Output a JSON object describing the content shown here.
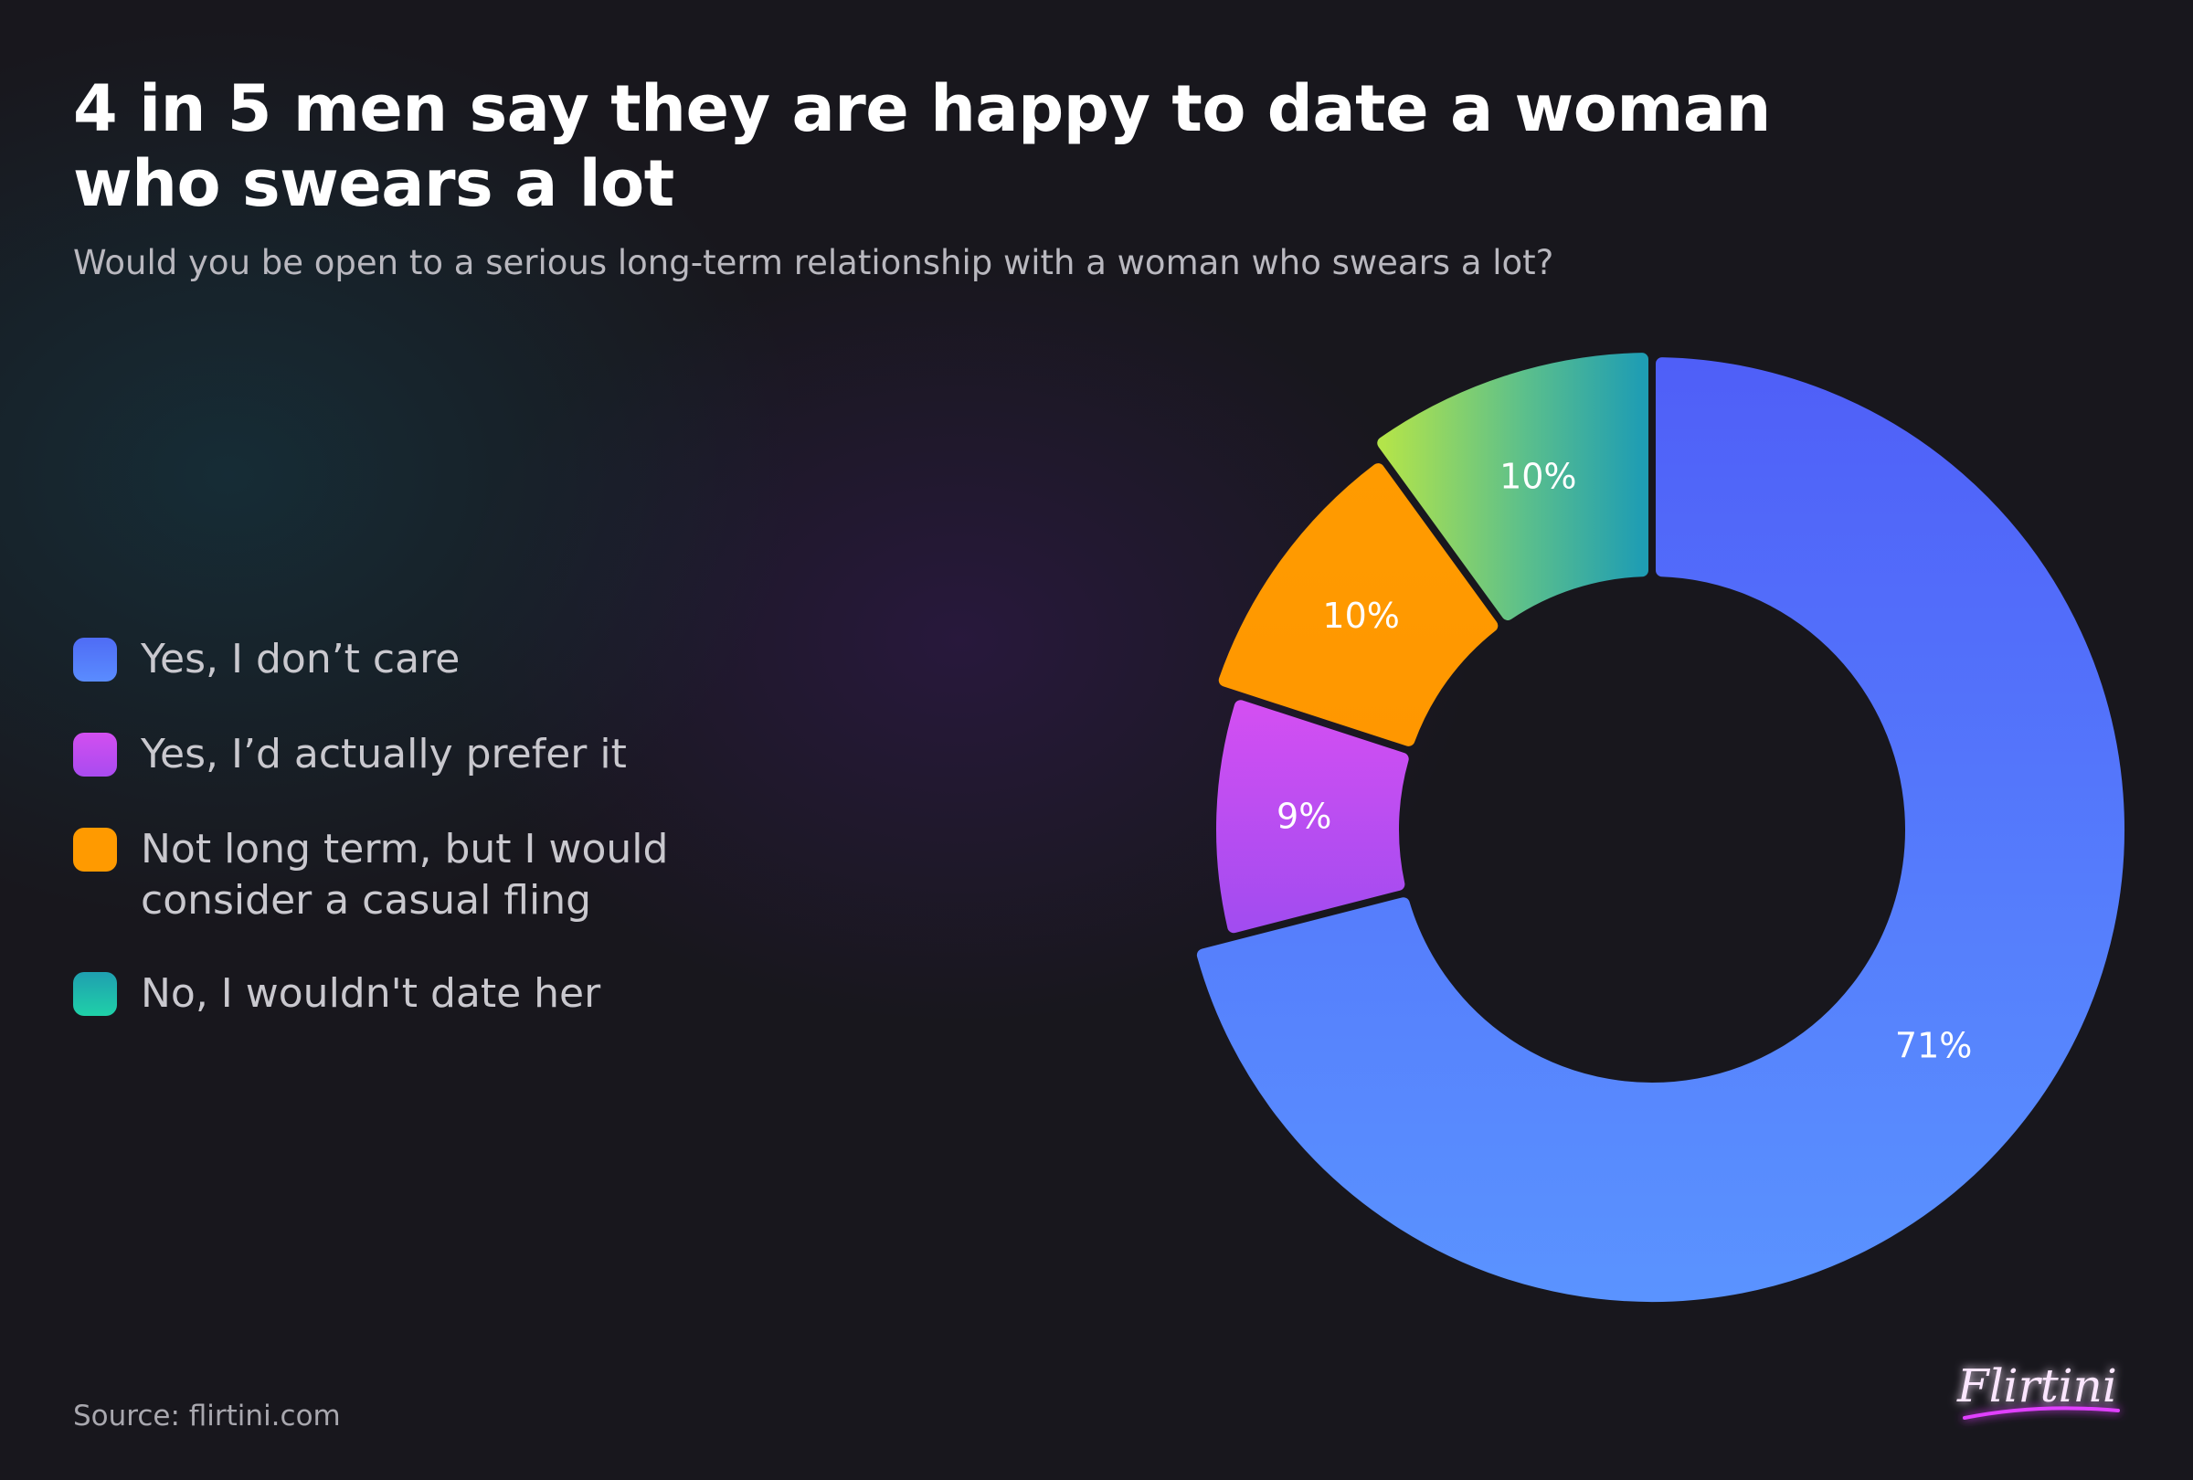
{
  "header": {
    "title": "4 in 5 men say they are happy to date a woman who swears a lot",
    "subtitle": "Would you be open to a serious long-term relationship with a woman who swears a lot?"
  },
  "legend": [
    {
      "label": "Yes, I don’t care",
      "color_top": "#4f6cf5",
      "color_bottom": "#5a8cff"
    },
    {
      "label": "Yes, I’d actually prefer it",
      "color_top": "#d24ff0",
      "color_bottom": "#a94bf0"
    },
    {
      "label": "Not long term, but I would consider a casual fling",
      "color_top": "#ff9a00",
      "color_bottom": "#ff9a00"
    },
    {
      "label": "No, I wouldn't date her",
      "color_top": "#1f9fb0",
      "color_bottom": "#1fd1a8"
    }
  ],
  "chart_data": {
    "type": "pie",
    "variant": "donut",
    "categories": [
      "Yes, I don’t care",
      "Yes, I’d actually prefer it",
      "Not long term, but I would consider a casual fling",
      "No, I wouldn't date her"
    ],
    "values": [
      71,
      9,
      10,
      10
    ],
    "value_labels": [
      "71%",
      "9%",
      "10%",
      "10%"
    ],
    "legend_position": "left"
  },
  "footer": {
    "source": "Source: flirtini.com",
    "brand": "Flirtini"
  }
}
